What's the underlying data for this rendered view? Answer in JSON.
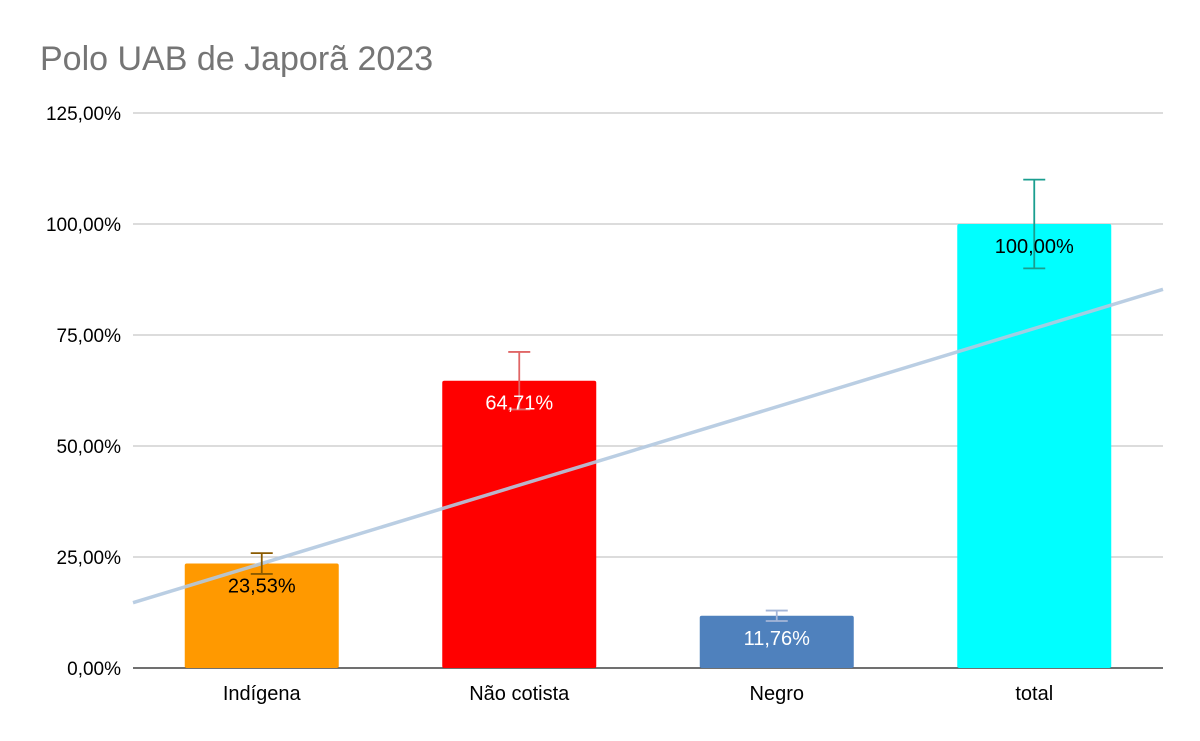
{
  "chart_data": {
    "type": "bar",
    "title": "Polo UAB de Japorã 2023",
    "xlabel": "",
    "ylabel": "",
    "categories": [
      "Indígena",
      "Não cotista",
      "Negro",
      "total"
    ],
    "values": [
      23.53,
      64.71,
      11.76,
      100.0
    ],
    "data_labels": [
      "23,53%",
      "64,71%",
      "11,76%",
      "100,00%"
    ],
    "ylim": [
      0,
      125
    ],
    "yticks": [
      0,
      25,
      50,
      75,
      100,
      125
    ],
    "ytick_labels": [
      "0,00%",
      "25,00%",
      "50,00%",
      "75,00%",
      "100,00%",
      "125,00%"
    ],
    "grid": true,
    "legend": "none",
    "bar_colors": [
      "#ff9900",
      "#ff0000",
      "#4f81bd",
      "#00ffff"
    ],
    "label_colors": [
      "#000000",
      "#ffffff",
      "#ffffff",
      "#000000"
    ],
    "error_bars": [
      {
        "plus": 2.35,
        "minus": 2.35,
        "color": "#8a5a00"
      },
      {
        "plus": 6.47,
        "minus": 6.47,
        "color": "#e06666"
      },
      {
        "plus": 1.18,
        "minus": 1.18,
        "color": "#a4b6d8"
      },
      {
        "plus": 10.0,
        "minus": 10.0,
        "color": "#1a9e8f"
      }
    ],
    "trendline": {
      "type": "linear",
      "color": "#b3c9e0"
    }
  }
}
